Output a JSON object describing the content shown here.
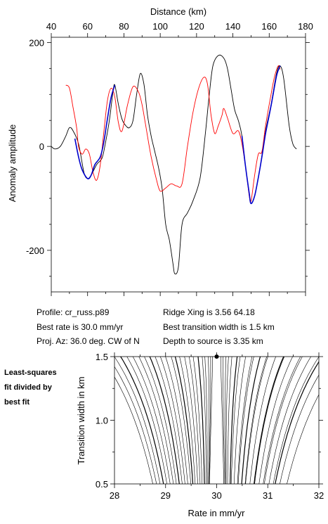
{
  "info": {
    "profile": "Profile: cr_russ.p89",
    "best_rate": "Best rate is 30.0 mm/yr",
    "proj_az": "Proj. Az: 36.0 deg. CW of N",
    "ridge_xing": "Ridge Xing is 3.56 64.18",
    "best_transition": "Best transition width is 1.5 km",
    "depth": "Depth to source is   3.35 km"
  },
  "side_note": [
    "Least-squares",
    "fit divided by",
    "best fit"
  ],
  "colors": {
    "observed": "#000000",
    "model": "#ff0000",
    "fit_window": "#0000cc",
    "contour": "#000000"
  },
  "chart_data": [
    {
      "type": "line",
      "title": "",
      "xlabel": "Distance (km)",
      "ylabel": "Anomaly amplitude",
      "xlim": [
        40,
        180
      ],
      "ylim": [
        -280,
        210
      ],
      "x_ticks": [
        40,
        60,
        80,
        100,
        120,
        140,
        160,
        180
      ],
      "y_ticks": [
        200,
        0,
        -200
      ],
      "x_axis_position": "top",
      "grid": false,
      "series": [
        {
          "color": "#000000",
          "points": [
            [
              40,
              0
            ],
            [
              42,
              -5
            ],
            [
              45,
              0
            ],
            [
              48,
              20
            ],
            [
              50,
              36
            ],
            [
              52,
              30
            ],
            [
              55,
              5
            ],
            [
              58,
              -50
            ],
            [
              60,
              -62
            ],
            [
              62,
              -55
            ],
            [
              65,
              -35
            ],
            [
              68,
              -22
            ],
            [
              70,
              10
            ],
            [
              72,
              50
            ],
            [
              74,
              105
            ],
            [
              75,
              118
            ],
            [
              77,
              80
            ],
            [
              79,
              52
            ],
            [
              81,
              40
            ],
            [
              83,
              36
            ],
            [
              85,
              50
            ],
            [
              87,
              100
            ],
            [
              89,
              140
            ],
            [
              91,
              120
            ],
            [
              93,
              60
            ],
            [
              95,
              20
            ],
            [
              97,
              -10
            ],
            [
              99,
              -40
            ],
            [
              101,
              -80
            ],
            [
              103,
              -150
            ],
            [
              105,
              -180
            ],
            [
              107,
              -225
            ],
            [
              108,
              -245
            ],
            [
              110,
              -232
            ],
            [
              112,
              -150
            ],
            [
              115,
              -128
            ],
            [
              118,
              -105
            ],
            [
              122,
              -60
            ],
            [
              125,
              30
            ],
            [
              127,
              100
            ],
            [
              129,
              155
            ],
            [
              132,
              175
            ],
            [
              135,
              170
            ],
            [
              137,
              150
            ],
            [
              139,
              110
            ],
            [
              141,
              70
            ],
            [
              143,
              50
            ],
            [
              145,
              20
            ],
            [
              147,
              -40
            ],
            [
              149,
              -90
            ],
            [
              150,
              -110
            ],
            [
              152,
              -95
            ],
            [
              155,
              -40
            ],
            [
              158,
              30
            ],
            [
              161,
              80
            ],
            [
              164,
              140
            ],
            [
              166,
              155
            ],
            [
              168,
              130
            ],
            [
              171,
              40
            ],
            [
              173,
              5
            ],
            [
              175,
              -5
            ]
          ]
        },
        {
          "color": "#ff0000",
          "points": [
            [
              48,
              118
            ],
            [
              50,
              112
            ],
            [
              52,
              75
            ],
            [
              54,
              35
            ],
            [
              55,
              0
            ],
            [
              57,
              -15
            ],
            [
              59,
              -5
            ],
            [
              61,
              -15
            ],
            [
              63,
              -50
            ],
            [
              65,
              -65
            ],
            [
              67,
              -35
            ],
            [
              69,
              30
            ],
            [
              71,
              90
            ],
            [
              73,
              112
            ],
            [
              75,
              95
            ],
            [
              77,
              45
            ],
            [
              79,
              30
            ],
            [
              82,
              80
            ],
            [
              85,
              115
            ],
            [
              88,
              105
            ],
            [
              90,
              80
            ],
            [
              92,
              40
            ],
            [
              95,
              -20
            ],
            [
              98,
              -65
            ],
            [
              100,
              -86
            ],
            [
              103,
              -80
            ],
            [
              106,
              -72
            ],
            [
              109,
              -76
            ],
            [
              112,
              -72
            ],
            [
              115,
              0
            ],
            [
              118,
              65
            ],
            [
              121,
              110
            ],
            [
              124,
              133
            ],
            [
              126,
              120
            ],
            [
              128,
              60
            ],
            [
              130,
              25
            ],
            [
              132,
              40
            ],
            [
              134,
              60
            ],
            [
              135,
              73
            ],
            [
              137,
              55
            ],
            [
              140,
              25
            ],
            [
              143,
              30
            ],
            [
              145,
              5
            ],
            [
              147,
              -40
            ],
            [
              149,
              -95
            ],
            [
              150,
              -105
            ],
            [
              152,
              -55
            ],
            [
              154,
              -15
            ],
            [
              156,
              -10
            ],
            [
              158,
              40
            ],
            [
              161,
              100
            ],
            [
              163,
              135
            ],
            [
              165,
              155
            ],
            [
              166,
              148
            ]
          ]
        },
        {
          "color": "#0000cc",
          "points": [
            [
              53,
              15
            ],
            [
              55,
              -20
            ],
            [
              57,
              -45
            ],
            [
              60,
              -62
            ],
            [
              62,
              -55
            ],
            [
              64,
              -35
            ],
            [
              67,
              -20
            ],
            [
              69,
              10
            ],
            [
              71,
              55
            ],
            [
              73,
              95
            ],
            [
              75,
              118
            ]
          ]
        },
        {
          "color": "#0000cc",
          "points": [
            [
              145,
              20
            ],
            [
              147,
              -40
            ],
            [
              149,
              -90
            ],
            [
              150,
              -110
            ],
            [
              152,
              -95
            ],
            [
              154,
              -60
            ],
            [
              156,
              -20
            ],
            [
              158,
              25
            ],
            [
              161,
              78
            ],
            [
              164,
              135
            ],
            [
              166,
              155
            ]
          ]
        }
      ]
    },
    {
      "type": "contour",
      "title": "",
      "xlabel": "Rate in mm/yr",
      "ylabel": "Transition width in km",
      "xlim": [
        28,
        32
      ],
      "ylim": [
        0.5,
        1.5
      ],
      "x_ticks": [
        28,
        29,
        30,
        31,
        32
      ],
      "y_ticks": [
        0.5,
        1.0,
        1.5
      ],
      "grid": false,
      "minimum": [
        30.0,
        1.5
      ],
      "contour_levels": [
        1.02,
        1.05,
        1.1,
        1.2,
        1.3,
        1.5,
        1.8,
        2.1,
        2.5,
        3.0,
        3.5,
        4.0,
        4.8,
        5.6,
        6.5,
        7.5,
        8.6,
        9.8,
        11.2,
        12.7,
        14.4,
        16.2,
        18.2,
        20.4
      ]
    }
  ]
}
